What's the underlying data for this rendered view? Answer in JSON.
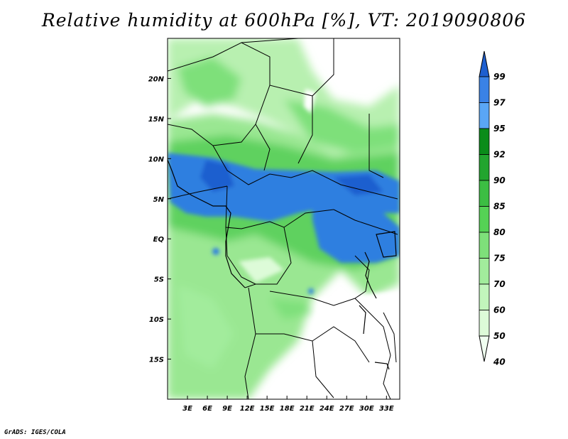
{
  "title": "Relative humidity at 600hPa [%], VT: 2019090806",
  "credit": "GrADS: IGES/COLA",
  "map": {
    "region": "Central Africa",
    "lon_range": [
      0,
      35
    ],
    "lat_range": [
      -20,
      25
    ],
    "x_ticks": [
      "3E",
      "6E",
      "9E",
      "12E",
      "15E",
      "18E",
      "21E",
      "24E",
      "27E",
      "30E",
      "33E"
    ],
    "x_tick_values": [
      3,
      6,
      9,
      12,
      15,
      18,
      21,
      24,
      27,
      30,
      33
    ],
    "y_ticks": [
      "20N",
      "15N",
      "10N",
      "5N",
      "EQ",
      "5S",
      "10S",
      "15S"
    ],
    "y_tick_values": [
      20,
      15,
      10,
      5,
      0,
      -5,
      -10,
      -15
    ]
  },
  "colorbar": {
    "labels": [
      "99",
      "97",
      "95",
      "92",
      "90",
      "85",
      "80",
      "75",
      "70",
      "60",
      "50",
      "40"
    ],
    "colors": [
      "#1e5fcf",
      "#3a82e6",
      "#5aa6f5",
      "#0a8c1a",
      "#22a52f",
      "#3cbe43",
      "#55d255",
      "#7ee07a",
      "#a2ec9c",
      "#c2f5bc",
      "#ddfbd8",
      "#f0fff0"
    ]
  }
}
